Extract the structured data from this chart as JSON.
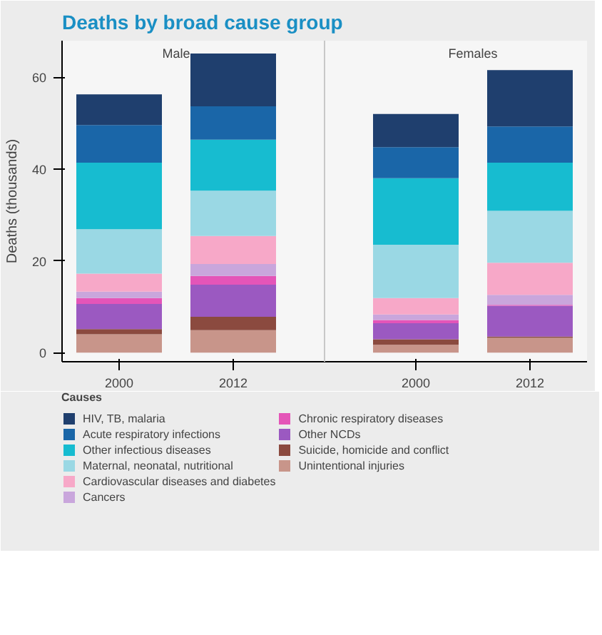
{
  "chart_data": {
    "type": "bar",
    "title": "Deaths by broad cause group",
    "ylabel": "Deaths (thousands)",
    "legend_title": "Causes",
    "categories": [
      "2000",
      "2012",
      "2000",
      "2012"
    ],
    "annotations": [
      "Male",
      "Females"
    ],
    "stacked": true,
    "ylim": [
      -2,
      68
    ],
    "yticks": [
      0,
      20,
      40,
      60
    ],
    "grid": false,
    "legend": "bottom",
    "series": [
      {
        "name": "Unintentional injuries",
        "color": "#c8958a",
        "values": [
          4.0,
          4.9,
          1.7,
          3.2
        ]
      },
      {
        "name": "Suicide, homicide and conflict",
        "color": "#8b4a3f",
        "values": [
          1.1,
          2.9,
          1.2,
          0.3
        ]
      },
      {
        "name": "Other NCDs",
        "color": "#9b59c1",
        "values": [
          5.5,
          7.0,
          3.5,
          6.7
        ]
      },
      {
        "name": "Chronic respiratory diseases",
        "color": "#e455b8",
        "values": [
          1.3,
          1.9,
          0.7,
          0.2
        ]
      },
      {
        "name": "Cancers",
        "color": "#c9a6dc",
        "values": [
          1.4,
          2.6,
          1.2,
          2.2
        ]
      },
      {
        "name": "Cardiovascular diseases and diabetes",
        "color": "#f7a8c8",
        "values": [
          3.9,
          6.1,
          3.6,
          7.0
        ]
      },
      {
        "name": "Maternal, neonatal, nutritional",
        "color": "#9ad8e4",
        "values": [
          9.7,
          9.9,
          11.6,
          11.3
        ]
      },
      {
        "name": "Other infectious diseases",
        "color": "#17bcd0",
        "values": [
          14.5,
          11.1,
          14.5,
          10.5
        ]
      },
      {
        "name": "Acute respiratory infections",
        "color": "#1a66a8",
        "values": [
          8.2,
          7.3,
          6.8,
          7.9
        ]
      },
      {
        "name": "HIV, TB, malaria",
        "color": "#1f3f6e",
        "values": [
          6.7,
          11.5,
          7.2,
          12.3
        ]
      }
    ]
  }
}
